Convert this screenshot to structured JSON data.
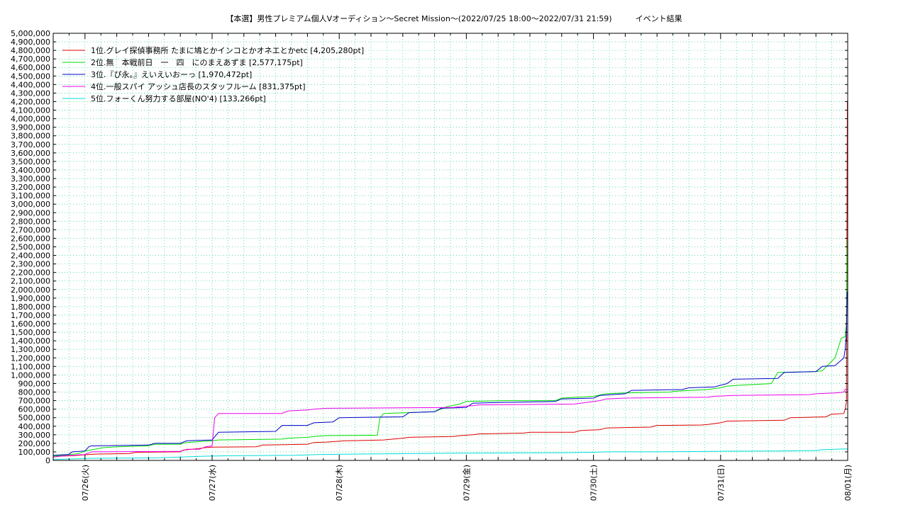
{
  "chart_data": {
    "type": "line",
    "title": "【本選】男性プレミアム個人Vオーディション〜Secret Mission～(2022/07/25 18:00～2022/07/31 21:59)　　　イベント結果",
    "ylim": [
      0,
      5000000
    ],
    "ytick_step": 100000,
    "xlim": [
      0,
      6.25
    ],
    "x_unit": "days from 07/25 18:00",
    "x_ticks": [
      {
        "x": 0.25,
        "label": "07/26(火)"
      },
      {
        "x": 1.25,
        "label": "07/27(水)"
      },
      {
        "x": 2.25,
        "label": "07/28(木)"
      },
      {
        "x": 3.25,
        "label": "07/29(金)"
      },
      {
        "x": 4.25,
        "label": "07/30(土)"
      },
      {
        "x": 5.25,
        "label": "07/31(日)"
      },
      {
        "x": 6.25,
        "label": "08/01(月)"
      }
    ],
    "grid": true,
    "legend_position": "top-left",
    "series": [
      {
        "name": "1位.グレイ探偵事務所 たまに鳩とかインコとかオネエとかetc [4,205,280pt]",
        "color": "#e00000",
        "points": [
          [
            0,
            40000
          ],
          [
            0.05,
            50000
          ],
          [
            0.15,
            55000
          ],
          [
            0.2,
            60000
          ],
          [
            0.28,
            70000
          ],
          [
            0.35,
            75000
          ],
          [
            0.6,
            80000
          ],
          [
            0.65,
            95000
          ],
          [
            1.0,
            100000
          ],
          [
            1.02,
            120000
          ],
          [
            1.15,
            140000
          ],
          [
            1.2,
            150000
          ],
          [
            1.25,
            155000
          ],
          [
            1.6,
            160000
          ],
          [
            1.65,
            180000
          ],
          [
            2.0,
            190000
          ],
          [
            2.05,
            210000
          ],
          [
            2.15,
            215000
          ],
          [
            2.3,
            230000
          ],
          [
            2.6,
            240000
          ],
          [
            2.75,
            260000
          ],
          [
            2.8,
            270000
          ],
          [
            3.15,
            280000
          ],
          [
            3.2,
            290000
          ],
          [
            3.3,
            300000
          ],
          [
            3.35,
            310000
          ],
          [
            3.7,
            320000
          ],
          [
            3.75,
            330000
          ],
          [
            4.1,
            330000
          ],
          [
            4.15,
            350000
          ],
          [
            4.3,
            360000
          ],
          [
            4.35,
            380000
          ],
          [
            4.7,
            390000
          ],
          [
            4.75,
            410000
          ],
          [
            5.1,
            415000
          ],
          [
            5.15,
            420000
          ],
          [
            5.25,
            440000
          ],
          [
            5.3,
            460000
          ],
          [
            5.75,
            470000
          ],
          [
            5.8,
            500000
          ],
          [
            6.08,
            510000
          ],
          [
            6.12,
            540000
          ],
          [
            6.22,
            550000
          ],
          [
            6.23,
            600000
          ],
          [
            6.24,
            680000
          ],
          [
            6.245,
            3300000
          ],
          [
            6.247,
            4205280
          ],
          [
            6.25,
            4205280
          ]
        ]
      },
      {
        "name": "2位.無　本戦前日　一　四　にのまえあずま [2,577,175pt]",
        "color": "#00dd00",
        "points": [
          [
            0,
            50000
          ],
          [
            0.08,
            60000
          ],
          [
            0.2,
            80000
          ],
          [
            0.25,
            110000
          ],
          [
            0.4,
            150000
          ],
          [
            0.5,
            160000
          ],
          [
            0.75,
            170000
          ],
          [
            0.8,
            190000
          ],
          [
            1.0,
            190000
          ],
          [
            1.05,
            210000
          ],
          [
            1.25,
            230000
          ],
          [
            1.3,
            240000
          ],
          [
            1.8,
            250000
          ],
          [
            1.85,
            260000
          ],
          [
            2.0,
            270000
          ],
          [
            2.05,
            280000
          ],
          [
            2.15,
            290000
          ],
          [
            2.55,
            295000
          ],
          [
            2.57,
            500000
          ],
          [
            2.6,
            550000
          ],
          [
            3.0,
            570000
          ],
          [
            3.1,
            630000
          ],
          [
            3.2,
            660000
          ],
          [
            3.25,
            690000
          ],
          [
            3.55,
            700000
          ],
          [
            3.6,
            700000
          ],
          [
            3.95,
            700000
          ],
          [
            4.0,
            730000
          ],
          [
            4.25,
            750000
          ],
          [
            4.35,
            780000
          ],
          [
            4.5,
            790000
          ],
          [
            4.85,
            800000
          ],
          [
            4.9,
            810000
          ],
          [
            5.15,
            830000
          ],
          [
            5.25,
            850000
          ],
          [
            5.3,
            870000
          ],
          [
            5.4,
            880000
          ],
          [
            5.65,
            900000
          ],
          [
            5.7,
            1030000
          ],
          [
            6.0,
            1040000
          ],
          [
            6.05,
            1050000
          ],
          [
            6.15,
            1200000
          ],
          [
            6.2,
            1430000
          ],
          [
            6.23,
            1450000
          ],
          [
            6.24,
            1600000
          ],
          [
            6.245,
            2400000
          ],
          [
            6.247,
            2577175
          ],
          [
            6.25,
            2577175
          ]
        ]
      },
      {
        "name": "3位.『ぴ永。』えいえいおーっ [1,970,472pt]",
        "color": "#0000cc",
        "points": [
          [
            0,
            60000
          ],
          [
            0.12,
            70000
          ],
          [
            0.15,
            100000
          ],
          [
            0.25,
            110000
          ],
          [
            0.28,
            160000
          ],
          [
            0.3,
            170000
          ],
          [
            0.75,
            180000
          ],
          [
            0.8,
            200000
          ],
          [
            1.0,
            200000
          ],
          [
            1.05,
            230000
          ],
          [
            1.25,
            240000
          ],
          [
            1.3,
            330000
          ],
          [
            1.75,
            340000
          ],
          [
            1.8,
            410000
          ],
          [
            2.0,
            410000
          ],
          [
            2.05,
            440000
          ],
          [
            2.2,
            450000
          ],
          [
            2.25,
            500000
          ],
          [
            2.75,
            510000
          ],
          [
            2.8,
            560000
          ],
          [
            3.0,
            570000
          ],
          [
            3.05,
            610000
          ],
          [
            3.25,
            620000
          ],
          [
            3.3,
            670000
          ],
          [
            3.55,
            680000
          ],
          [
            3.6,
            680000
          ],
          [
            3.95,
            690000
          ],
          [
            4.0,
            720000
          ],
          [
            4.25,
            730000
          ],
          [
            4.3,
            760000
          ],
          [
            4.5,
            780000
          ],
          [
            4.55,
            820000
          ],
          [
            4.95,
            830000
          ],
          [
            5.0,
            850000
          ],
          [
            5.2,
            860000
          ],
          [
            5.25,
            880000
          ],
          [
            5.3,
            900000
          ],
          [
            5.35,
            950000
          ],
          [
            5.7,
            960000
          ],
          [
            5.75,
            1030000
          ],
          [
            6.0,
            1040000
          ],
          [
            6.05,
            1100000
          ],
          [
            6.15,
            1110000
          ],
          [
            6.22,
            1200000
          ],
          [
            6.23,
            1300000
          ],
          [
            6.24,
            1500000
          ],
          [
            6.245,
            1970472
          ],
          [
            6.25,
            1970472
          ]
        ]
      },
      {
        "name": "4位.一般スパイ アッシュ店長のスタッフルーム [831,375pt]",
        "color": "#ee00ee",
        "points": [
          [
            0,
            40000
          ],
          [
            0.1,
            55000
          ],
          [
            0.25,
            70000
          ],
          [
            0.3,
            100000
          ],
          [
            1.0,
            105000
          ],
          [
            1.05,
            130000
          ],
          [
            1.15,
            130000
          ],
          [
            1.2,
            160000
          ],
          [
            1.25,
            170000
          ],
          [
            1.27,
            500000
          ],
          [
            1.3,
            550000
          ],
          [
            1.8,
            550000
          ],
          [
            1.85,
            580000
          ],
          [
            2.0,
            590000
          ],
          [
            2.05,
            600000
          ],
          [
            2.15,
            610000
          ],
          [
            3.15,
            620000
          ],
          [
            3.2,
            630000
          ],
          [
            3.3,
            640000
          ],
          [
            3.35,
            650000
          ],
          [
            4.1,
            660000
          ],
          [
            4.15,
            670000
          ],
          [
            4.3,
            700000
          ],
          [
            4.35,
            720000
          ],
          [
            4.5,
            730000
          ],
          [
            5.15,
            740000
          ],
          [
            5.2,
            750000
          ],
          [
            5.35,
            760000
          ],
          [
            5.95,
            770000
          ],
          [
            6.0,
            780000
          ],
          [
            6.15,
            790000
          ],
          [
            6.22,
            800000
          ],
          [
            6.23,
            831375
          ],
          [
            6.25,
            831375
          ]
        ]
      },
      {
        "name": "5位.フォーくん努力する部屋(NO'4) [133,266pt]",
        "color": "#00dddd",
        "points": [
          [
            0,
            10000
          ],
          [
            0.2,
            20000
          ],
          [
            0.3,
            25000
          ],
          [
            0.8,
            30000
          ],
          [
            1.0,
            40000
          ],
          [
            1.2,
            50000
          ],
          [
            1.4,
            55000
          ],
          [
            1.9,
            60000
          ],
          [
            2.1,
            70000
          ],
          [
            2.4,
            75000
          ],
          [
            2.8,
            80000
          ],
          [
            3.2,
            85000
          ],
          [
            3.7,
            88000
          ],
          [
            4.0,
            90000
          ],
          [
            4.25,
            95000
          ],
          [
            4.35,
            100000
          ],
          [
            4.8,
            102000
          ],
          [
            5.2,
            105000
          ],
          [
            5.3,
            108000
          ],
          [
            5.7,
            110000
          ],
          [
            6.0,
            115000
          ],
          [
            6.05,
            125000
          ],
          [
            6.15,
            130000
          ],
          [
            6.2,
            133266
          ],
          [
            6.25,
            133266
          ]
        ]
      }
    ]
  }
}
